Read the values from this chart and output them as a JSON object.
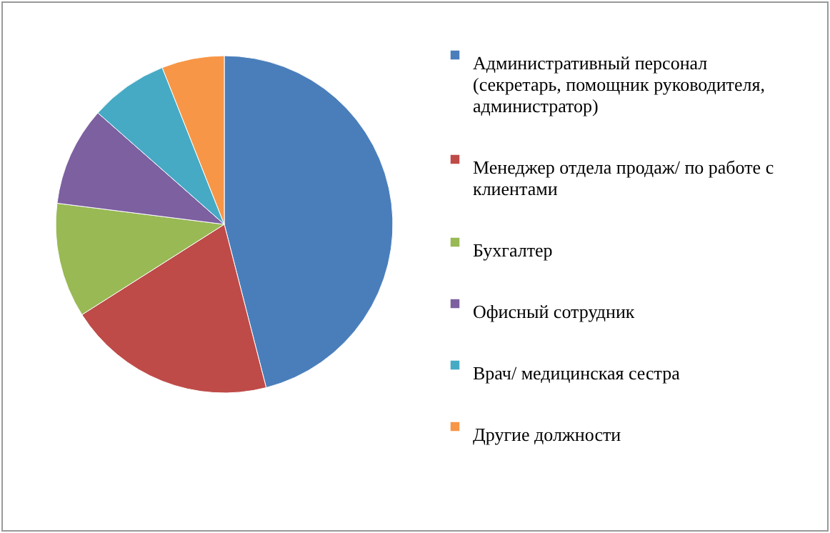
{
  "chart_data": {
    "type": "pie",
    "categories": [
      "Административный персонал (секретарь, помощник руководителя, администратор)",
      "Менеджер отдела продаж/ по работе с клиентами",
      "Бухгалтер",
      "Офисный сотрудник",
      "Врач/ медицинская сестра",
      "Другие должности"
    ],
    "values": [
      46,
      20,
      11,
      9.5,
      7.5,
      6
    ],
    "colors": [
      "#4a7ebb",
      "#be4b48",
      "#98b954",
      "#7d60a0",
      "#46aac5",
      "#f79646"
    ],
    "legend": "right"
  }
}
